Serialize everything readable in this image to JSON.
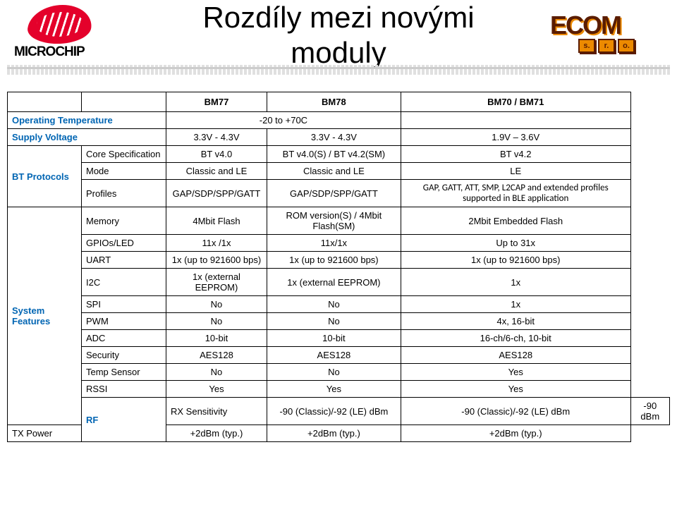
{
  "title_line1": "Rozdíly mezi novými",
  "title_line2": "moduly",
  "logo_left_text": "MICROCHIP",
  "logo_right_main": "ECOM",
  "logo_right_sub": [
    "s.",
    "r.",
    "o."
  ],
  "table": {
    "headers": [
      "",
      "",
      "BM77",
      "BM78",
      "BM70 / BM71"
    ],
    "rows": [
      {
        "group": "Operating Temperature",
        "group_colspan": 2,
        "cells": [
          {
            "text": "-20 to +70C",
            "colspan": 2
          },
          ""
        ],
        "group_blue": true,
        "last_empty": true
      },
      {
        "group": "Supply Voltage",
        "group_colspan": 2,
        "cells": [
          "3.3V - 4.3V",
          "3.3V - 4.3V",
          "1.9V – 3.6V"
        ],
        "group_blue": true
      },
      {
        "group": "BT Protocols",
        "group_rowspan": 3,
        "sub": "Core Specification",
        "cells": [
          "BT v4.0",
          "BT v4.0(S) / BT v4.2(SM)",
          "BT v4.2"
        ],
        "group_blue": true
      },
      {
        "sub": "Mode",
        "cells": [
          "Classic and LE",
          "Classic and LE",
          "LE"
        ]
      },
      {
        "sub": "Profiles",
        "cells": [
          "GAP/SDP/SPP/GATT",
          "GAP/SDP/SPP/GATT",
          "GAP, GATT, ATT, SMP, L2CAP and extended profiles supported in BLE application"
        ],
        "last_profiles": true
      },
      {
        "group": "System Features",
        "group_rowspan": 11,
        "sub": "Memory",
        "cells": [
          "4Mbit Flash",
          "ROM version(S) / 4Mbit Flash(SM)",
          "2Mbit Embedded Flash"
        ],
        "group_blue": true
      },
      {
        "sub": "GPIOs/LED",
        "cells": [
          "11x /1x",
          "11x/1x",
          "Up to 31x"
        ]
      },
      {
        "sub": "UART",
        "cells": [
          "1x (up to 921600 bps)",
          "1x (up to 921600 bps)",
          "1x (up to 921600 bps)"
        ]
      },
      {
        "sub": "I2C",
        "cells": [
          "1x (external EEPROM)",
          "1x (external EEPROM)",
          "1x"
        ]
      },
      {
        "sub": "SPI",
        "cells": [
          "No",
          "No",
          "1x"
        ]
      },
      {
        "sub": "PWM",
        "cells": [
          "No",
          "No",
          "4x, 16-bit"
        ]
      },
      {
        "sub": "ADC",
        "cells": [
          "10-bit",
          "10-bit",
          "16-ch/6-ch, 10-bit"
        ]
      },
      {
        "sub": "Security",
        "cells": [
          "AES128",
          "AES128",
          "AES128"
        ]
      },
      {
        "sub": "Temp Sensor",
        "cells": [
          "No",
          "No",
          "Yes"
        ]
      },
      {
        "sub": "RSSI",
        "cells": [
          "Yes",
          "Yes",
          "Yes"
        ]
      },
      {
        "group": "RF",
        "group_rowspan": 2,
        "sub": "RX Sensitivity",
        "cells": [
          "-90 (Classic)/-92 (LE) dBm",
          "-90 (Classic)/-92 (LE) dBm",
          "-90 dBm"
        ],
        "group_blue": true
      },
      {
        "sub": "TX Power",
        "cells": [
          "+2dBm (typ.)",
          "+2dBm (typ.)",
          "+2dBm (typ.)"
        ]
      }
    ]
  },
  "colors": {
    "blue": "#0065b3",
    "red": "#e4012b",
    "ecom_brown": "#5a1c00",
    "ecom_orange": "#ec8a00"
  }
}
